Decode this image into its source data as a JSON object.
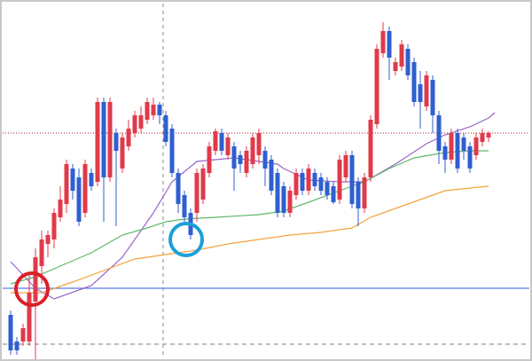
{
  "chart_data": {
    "type": "candlestick",
    "ylim": [
      0,
      407
    ],
    "up_color": "#e03a4a",
    "down_color": "#2f5fd0",
    "open": [
      52,
      22,
      22,
      22,
      67,
      107,
      132,
      137,
      162,
      177,
      217,
      207,
      167,
      212,
      202,
      292,
      207,
      257,
      217,
      242,
      257,
      262,
      272,
      277,
      289,
      277,
      262,
      212,
      187,
      167,
      167,
      182,
      212,
      237,
      257,
      232,
      242,
      232,
      212,
      222,
      232,
      237,
      227,
      212,
      197,
      167,
      187,
      212,
      192,
      212,
      207,
      202,
      197,
      182,
      207,
      232,
      202,
      172,
      207,
      267,
      347,
      372,
      327,
      332,
      352,
      337,
      312,
      287,
      317,
      277,
      242,
      227,
      257,
      252,
      242,
      232,
      247,
      252
    ],
    "high": [
      57,
      27,
      42,
      97,
      127,
      147,
      147,
      172,
      197,
      227,
      222,
      217,
      227,
      217,
      297,
      297,
      297,
      262,
      257,
      272,
      282,
      287,
      297,
      297,
      292,
      282,
      267,
      217,
      192,
      172,
      217,
      222,
      247,
      262,
      262,
      257,
      247,
      237,
      242,
      257,
      262,
      242,
      232,
      217,
      202,
      197,
      217,
      217,
      222,
      217,
      212,
      207,
      202,
      232,
      237,
      237,
      207,
      212,
      277,
      357,
      382,
      377,
      342,
      362,
      357,
      342,
      327,
      327,
      322,
      282,
      247,
      262,
      262,
      257,
      247,
      257,
      262,
      259
    ],
    "low": [
      7,
      7,
      17,
      17,
      2,
      87,
      117,
      127,
      157,
      167,
      182,
      152,
      162,
      192,
      197,
      157,
      202,
      152,
      212,
      237,
      252,
      257,
      267,
      272,
      267,
      242,
      207,
      167,
      157,
      137,
      157,
      177,
      207,
      232,
      232,
      227,
      192,
      212,
      207,
      217,
      222,
      197,
      187,
      162,
      162,
      162,
      182,
      187,
      187,
      192,
      187,
      182,
      177,
      177,
      202,
      172,
      152,
      167,
      202,
      262,
      342,
      317,
      322,
      327,
      317,
      287,
      262,
      282,
      257,
      222,
      212,
      222,
      212,
      227,
      212,
      227,
      242,
      247
    ],
    "close": [
      12,
      12,
      37,
      77,
      117,
      137,
      142,
      167,
      182,
      222,
      192,
      157,
      222,
      197,
      292,
      207,
      292,
      237,
      252,
      262,
      277,
      277,
      292,
      289,
      277,
      247,
      212,
      177,
      162,
      142,
      212,
      217,
      242,
      259,
      237,
      252,
      217,
      222,
      237,
      252,
      257,
      217,
      192,
      167,
      167,
      192,
      212,
      192,
      217,
      197,
      192,
      187,
      179,
      227,
      232,
      177,
      172,
      207,
      272,
      352,
      372,
      342,
      337,
      357,
      322,
      292,
      292,
      322,
      277,
      237,
      227,
      257,
      217,
      237,
      217,
      252,
      257,
      257
    ],
    "lines": [
      {
        "color": "#9a64c8",
        "x": [
          0,
          4,
          7,
          13,
          18,
          23,
          26,
          30,
          36,
          43,
          44,
          48,
          53,
          57,
          62,
          67,
          70,
          74,
          77,
          78
        ],
        "values": [
          112,
          82,
          70,
          85,
          117,
          167,
          202,
          225,
          229,
          222,
          217,
          204,
          202,
          202,
          222,
          245,
          255,
          264,
          274,
          280
        ]
      },
      {
        "color": "#5fb86a",
        "x": [
          0,
          4,
          8,
          13,
          18,
          22,
          25,
          28,
          33,
          40,
          44,
          48,
          53,
          57,
          61,
          65,
          70,
          74,
          77
        ],
        "values": [
          87,
          95,
          107,
          122,
          142,
          150,
          157,
          160,
          162,
          165,
          169,
          179,
          192,
          202,
          217,
          229,
          235,
          237,
          237
        ]
      },
      {
        "color": "#f2a33a",
        "x": [
          0,
          5,
          10,
          15,
          20,
          25,
          30,
          35,
          40,
          45,
          50,
          55,
          58,
          62,
          66,
          70,
          74,
          77
        ],
        "values": [
          77,
          77,
          89,
          102,
          115,
          120,
          125,
          132,
          137,
          142,
          145,
          150,
          162,
          172,
          182,
          192,
          195,
          197
        ]
      }
    ],
    "hlines": [
      {
        "value": 82,
        "color": "#5b7be8",
        "style": "solid"
      },
      {
        "value": 257,
        "color": "#b5474f",
        "style": "dotted"
      },
      {
        "value": 19,
        "color": "#999999",
        "style": "dashed"
      }
    ]
  }
}
